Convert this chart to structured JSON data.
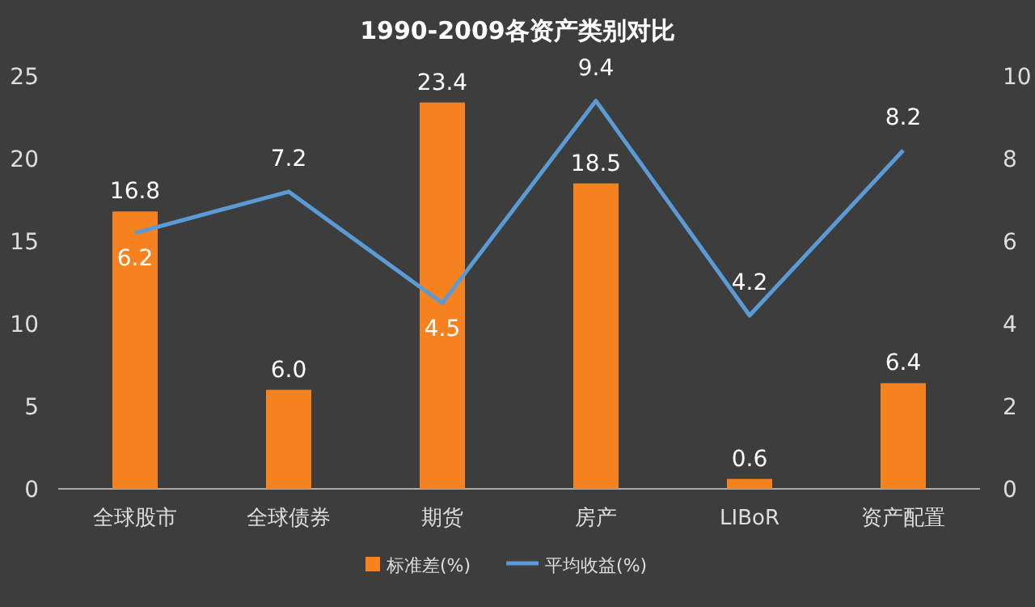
{
  "chart_data": {
    "type": "bar",
    "title": "1990-2009各资产类别对比",
    "categories": [
      "全球股市",
      "全球债券",
      "期货",
      "房产",
      "LIBoR",
      "资产配置"
    ],
    "series": [
      {
        "name": "标准差(%)",
        "color": "#f5821f",
        "values": [
          16.8,
          6.0,
          23.4,
          18.5,
          0.6,
          6.4
        ],
        "value_labels": [
          "16.8",
          "6.0",
          "23.4",
          "18.5",
          "0.6",
          "6.4"
        ]
      },
      {
        "name": "平均收益(%)",
        "type": "line",
        "axis": "y2",
        "color": "#5b9bd5",
        "values": [
          6.2,
          7.2,
          4.5,
          9.4,
          4.2,
          8.2
        ],
        "value_labels": [
          "6.2",
          "7.2",
          "4.5",
          "9.4",
          "4.2",
          "8.2"
        ]
      }
    ],
    "ylim": [
      0,
      25
    ],
    "yticks": [
      0,
      5,
      10,
      15,
      20,
      25
    ],
    "y2lim": [
      0,
      10
    ],
    "y2ticks": [
      0,
      2,
      4,
      6,
      8,
      10
    ],
    "legend": "bottom"
  }
}
